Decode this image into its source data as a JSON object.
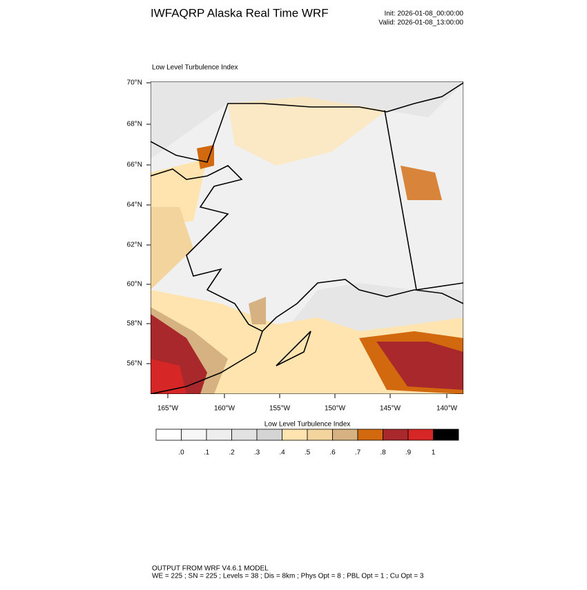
{
  "header": {
    "title": "IWFAQRP Alaska Real Time WRF",
    "init": "Init: 2026-01-08_00:00:00",
    "valid": "Valid: 2026-01-08_13:00:00"
  },
  "map": {
    "title": "Low Level Turbulence Index",
    "lat_labels": [
      "70°N",
      "68°N",
      "66°N",
      "64°N",
      "62°N",
      "60°N",
      "58°N",
      "56°N"
    ],
    "lon_labels": [
      "165°W",
      "160°W",
      "155°W",
      "150°W",
      "145°W",
      "140°W"
    ]
  },
  "colorbar": {
    "title": "Low Level Turbulence Index",
    "colors": [
      "#ffffff",
      "#f7f7f7",
      "#eeeeee",
      "#e2e2e2",
      "#d4d4d4",
      "#ffe4b0",
      "#f3d49d",
      "#d6b283",
      "#d2690e",
      "#a8282c",
      "#d62626",
      "#000000"
    ],
    "labels": [
      ".0",
      ".1",
      ".2",
      ".3",
      ".4",
      ".5",
      ".6",
      ".7",
      ".8",
      ".9",
      "1"
    ]
  },
  "footer": {
    "line1": "OUTPUT FROM WRF V4.6.1 MODEL",
    "line2": "WE = 225 ; SN = 225 ; Levels = 38 ; Dis = 8km ; Phys Opt = 8 ; PBL Opt = 1 ; Cu Opt = 3"
  }
}
